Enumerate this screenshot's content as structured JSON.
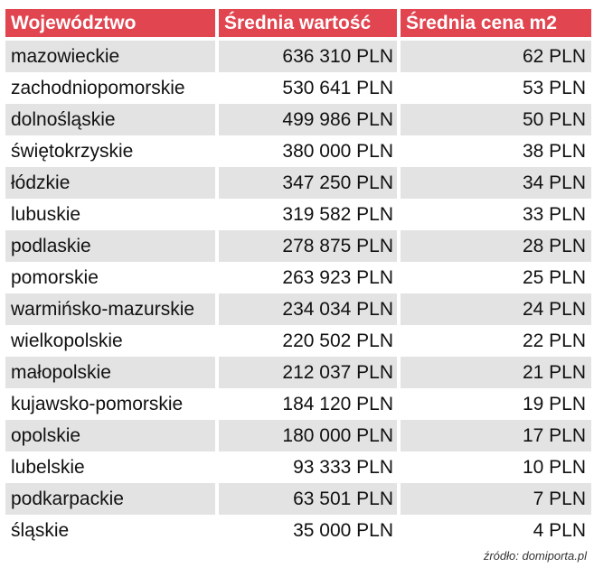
{
  "chart_data": {
    "type": "table",
    "columns": [
      "Województwo",
      "Średnia wartość",
      "Średnia cena m2"
    ],
    "rows": [
      {
        "region": "mazowieckie",
        "value": "636 310 PLN",
        "price_m2": "62 PLN"
      },
      {
        "region": "zachodniopomorskie",
        "value": "530 641 PLN",
        "price_m2": "53 PLN"
      },
      {
        "region": "dolnośląskie",
        "value": "499 986 PLN",
        "price_m2": "50 PLN"
      },
      {
        "region": "świętokrzyskie",
        "value": "380 000 PLN",
        "price_m2": "38 PLN"
      },
      {
        "region": "łódzkie",
        "value": "347 250 PLN",
        "price_m2": "34 PLN"
      },
      {
        "region": "lubuskie",
        "value": "319 582 PLN",
        "price_m2": "33 PLN"
      },
      {
        "region": "podlaskie",
        "value": "278 875 PLN",
        "price_m2": "28 PLN"
      },
      {
        "region": "pomorskie",
        "value": "263 923 PLN",
        "price_m2": "25 PLN"
      },
      {
        "region": "warmińsko-mazurskie",
        "value": "234 034 PLN",
        "price_m2": "24 PLN"
      },
      {
        "region": "wielkopolskie",
        "value": "220 502 PLN",
        "price_m2": "22 PLN"
      },
      {
        "region": "małopolskie",
        "value": "212 037 PLN",
        "price_m2": "21 PLN"
      },
      {
        "region": "kujawsko-pomorskie",
        "value": "184 120 PLN",
        "price_m2": "19 PLN"
      },
      {
        "region": "opolskie",
        "value": "180 000 PLN",
        "price_m2": "17 PLN"
      },
      {
        "region": "lubelskie",
        "value": "93 333 PLN",
        "price_m2": "10 PLN"
      },
      {
        "region": "podkarpackie",
        "value": "63 501 PLN",
        "price_m2": "7 PLN"
      },
      {
        "region": "śląskie",
        "value": "35 000 PLN",
        "price_m2": "4 PLN"
      }
    ],
    "header_color": "#e04550",
    "stripe_color": "#e3e3e3"
  },
  "source": "źródło: domiporta.pl"
}
